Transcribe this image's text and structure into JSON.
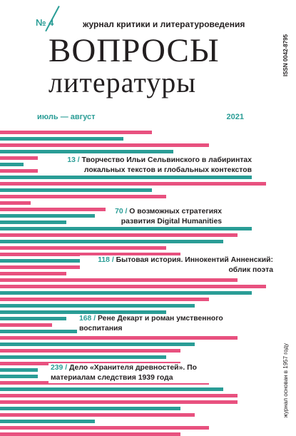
{
  "header": {
    "issue_number": "№ 4",
    "subtitle": "журнал критики и литературоведения",
    "title_line1": "ВОПРОСЫ",
    "title_line2": "литературы",
    "issn": "ISSN 0042-8795",
    "period": "июль — август",
    "year": "2021",
    "founded": "журнал основан в 1957 году"
  },
  "colors": {
    "pink": "#e8517f",
    "teal": "#2a9d96",
    "text": "#231f20"
  },
  "articles": [
    {
      "page": "13 /",
      "title": "Творчество Ильи Сельвинского в лабиринтах локальных текстов и глобальных контекстов"
    },
    {
      "page": "70 /",
      "title": "О возможных стратегиях развития Digital Humanities"
    },
    {
      "page": "118 /",
      "title": "Бытовая история. Иннокентий Анненский: облик поэта"
    },
    {
      "page": "168 /",
      "title": "Рене Декарт и роман умственного воспитания"
    },
    {
      "page": "239 /",
      "title": "Дело «Хранителя древностей». По материалам следствия 1939 года"
    }
  ]
}
